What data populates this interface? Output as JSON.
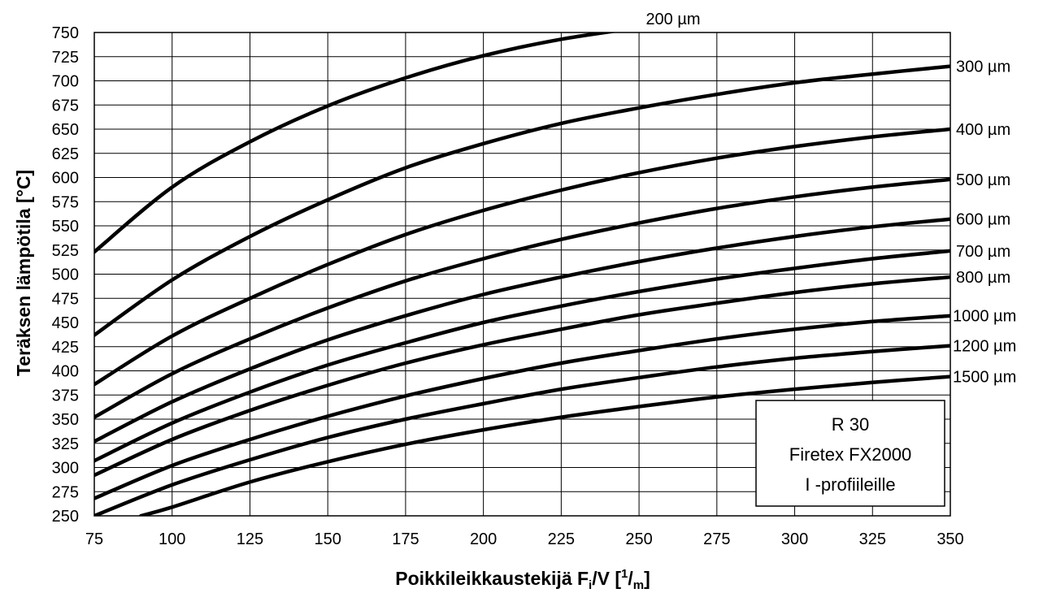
{
  "chart_data": {
    "type": "line",
    "xlabel_parts": [
      "Poikkileikkaustekijä F",
      "i",
      "/V [",
      "1",
      "/",
      "m",
      "]"
    ],
    "ylabel": "Teräksen lämpötila [°C]",
    "xlim": [
      75,
      350
    ],
    "ylim": [
      250,
      750
    ],
    "x_ticks": [
      "75",
      "100",
      "125",
      "150",
      "175",
      "200",
      "225",
      "250",
      "275",
      "300",
      "325",
      "350"
    ],
    "y_ticks": [
      "250",
      "275",
      "300",
      "325",
      "350",
      "375",
      "400",
      "425",
      "450",
      "475",
      "500",
      "525",
      "550",
      "575",
      "600",
      "625",
      "650",
      "675",
      "700",
      "725",
      "750"
    ],
    "grid": true,
    "info_box": [
      "R 30",
      "Firetex FX2000",
      "I -profiileille"
    ],
    "series": [
      {
        "name": "200 µm",
        "x": [
          75,
          100,
          125,
          150,
          175,
          200,
          225,
          250
        ],
        "y": [
          523,
          590,
          637,
          674,
          703,
          726,
          743,
          755
        ]
      },
      {
        "name": "300 µm",
        "x": [
          75,
          100,
          125,
          150,
          175,
          200,
          225,
          250,
          275,
          300,
          325,
          350
        ],
        "y": [
          437,
          494,
          539,
          577,
          610,
          635,
          656,
          672,
          686,
          698,
          707,
          715
        ]
      },
      {
        "name": "400 µm",
        "x": [
          75,
          100,
          125,
          150,
          175,
          200,
          225,
          250,
          275,
          300,
          325,
          350
        ],
        "y": [
          386,
          436,
          475,
          510,
          541,
          566,
          587,
          605,
          620,
          632,
          642,
          650
        ]
      },
      {
        "name": "500 µm",
        "x": [
          75,
          100,
          125,
          150,
          175,
          200,
          225,
          250,
          275,
          300,
          325,
          350
        ],
        "y": [
          352,
          397,
          433,
          465,
          493,
          516,
          536,
          553,
          568,
          580,
          590,
          598
        ]
      },
      {
        "name": "600 µm",
        "x": [
          75,
          100,
          125,
          150,
          175,
          200,
          225,
          250,
          275,
          300,
          325,
          350
        ],
        "y": [
          327,
          368,
          402,
          432,
          457,
          479,
          497,
          513,
          527,
          539,
          549,
          557
        ]
      },
      {
        "name": "700 µm",
        "x": [
          75,
          100,
          125,
          150,
          175,
          200,
          225,
          250,
          275,
          300,
          325,
          350
        ],
        "y": [
          307,
          346,
          378,
          406,
          429,
          450,
          467,
          482,
          495,
          506,
          516,
          524
        ]
      },
      {
        "name": "800 µm",
        "x": [
          75,
          100,
          125,
          150,
          175,
          200,
          225,
          250,
          275,
          300,
          325,
          350
        ],
        "y": [
          292,
          329,
          359,
          385,
          408,
          427,
          443,
          458,
          470,
          481,
          490,
          497
        ]
      },
      {
        "name": "1000 µm",
        "x": [
          75,
          100,
          125,
          150,
          175,
          200,
          225,
          250,
          275,
          300,
          325,
          350
        ],
        "y": [
          268,
          302,
          329,
          353,
          374,
          392,
          408,
          421,
          433,
          443,
          451,
          457
        ]
      },
      {
        "name": "1200 µm",
        "x": [
          75,
          100,
          125,
          150,
          175,
          200,
          225,
          250,
          275,
          300,
          325,
          350
        ],
        "y": [
          250,
          282,
          308,
          331,
          350,
          366,
          381,
          393,
          404,
          413,
          420,
          426
        ]
      },
      {
        "name": "1500 µm",
        "x": [
          90,
          100,
          125,
          150,
          175,
          200,
          225,
          250,
          275,
          300,
          325,
          350
        ],
        "y": [
          250,
          259,
          285,
          306,
          324,
          339,
          352,
          363,
          373,
          381,
          388,
          394
        ]
      }
    ]
  }
}
